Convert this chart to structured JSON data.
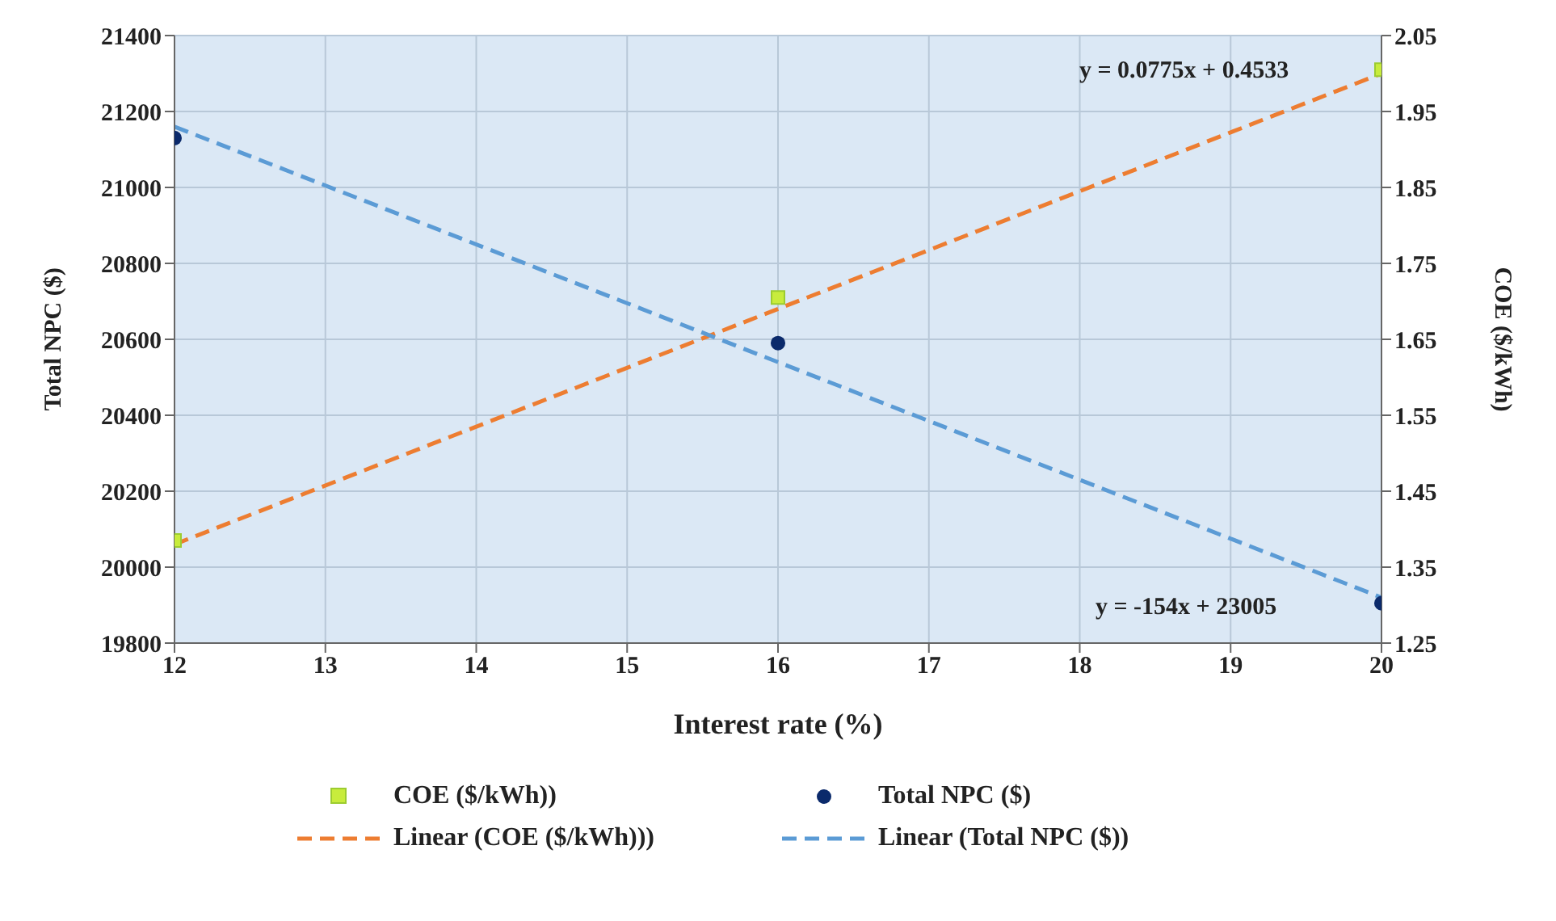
{
  "chart_data": {
    "type": "scatter",
    "xlabel": "Interest rate (%)",
    "ylabel": "Total NPC ($)",
    "y2label": "COE ($/kWh)",
    "xlim": [
      12,
      20
    ],
    "xticks": [
      12,
      13,
      14,
      15,
      16,
      17,
      18,
      19,
      20
    ],
    "ylim": [
      19800,
      21400
    ],
    "yticks": [
      19800,
      20000,
      20200,
      20400,
      20600,
      20800,
      21000,
      21200,
      21400
    ],
    "y2lim": [
      1.25,
      2.05
    ],
    "y2ticks": [
      1.25,
      1.35,
      1.45,
      1.55,
      1.65,
      1.75,
      1.85,
      1.95,
      2.05
    ],
    "grid": true,
    "legend": "bottom",
    "series": [
      {
        "name": "COE ($/kWh))",
        "axis": "y2",
        "marker": "square",
        "color": "#c8ec3c",
        "x": [
          12,
          16,
          20
        ],
        "values": [
          1.385,
          1.705,
          2.005
        ]
      },
      {
        "name": "Total NPC ($)",
        "marker": "circle",
        "color": "#0b2a6b",
        "x": [
          12,
          16,
          20
        ],
        "values": [
          21130,
          20590,
          19905
        ]
      },
      {
        "name": "Linear (COE ($/kWh)))",
        "type": "line",
        "axis": "y2",
        "marker": "none",
        "line_style": "dashed",
        "color": "#ed7d31",
        "x": [
          12,
          20
        ],
        "values": [
          1.38,
          2.0
        ]
      },
      {
        "name": "Linear (Total NPC ($))",
        "type": "line",
        "marker": "none",
        "line_style": "dashed",
        "color": "#5b9bd5",
        "x": [
          12,
          20
        ],
        "values": [
          21160,
          19920
        ]
      }
    ],
    "annotations": [
      "y = 0.0775x + 0.4533",
      "y = -154x + 23005"
    ]
  }
}
